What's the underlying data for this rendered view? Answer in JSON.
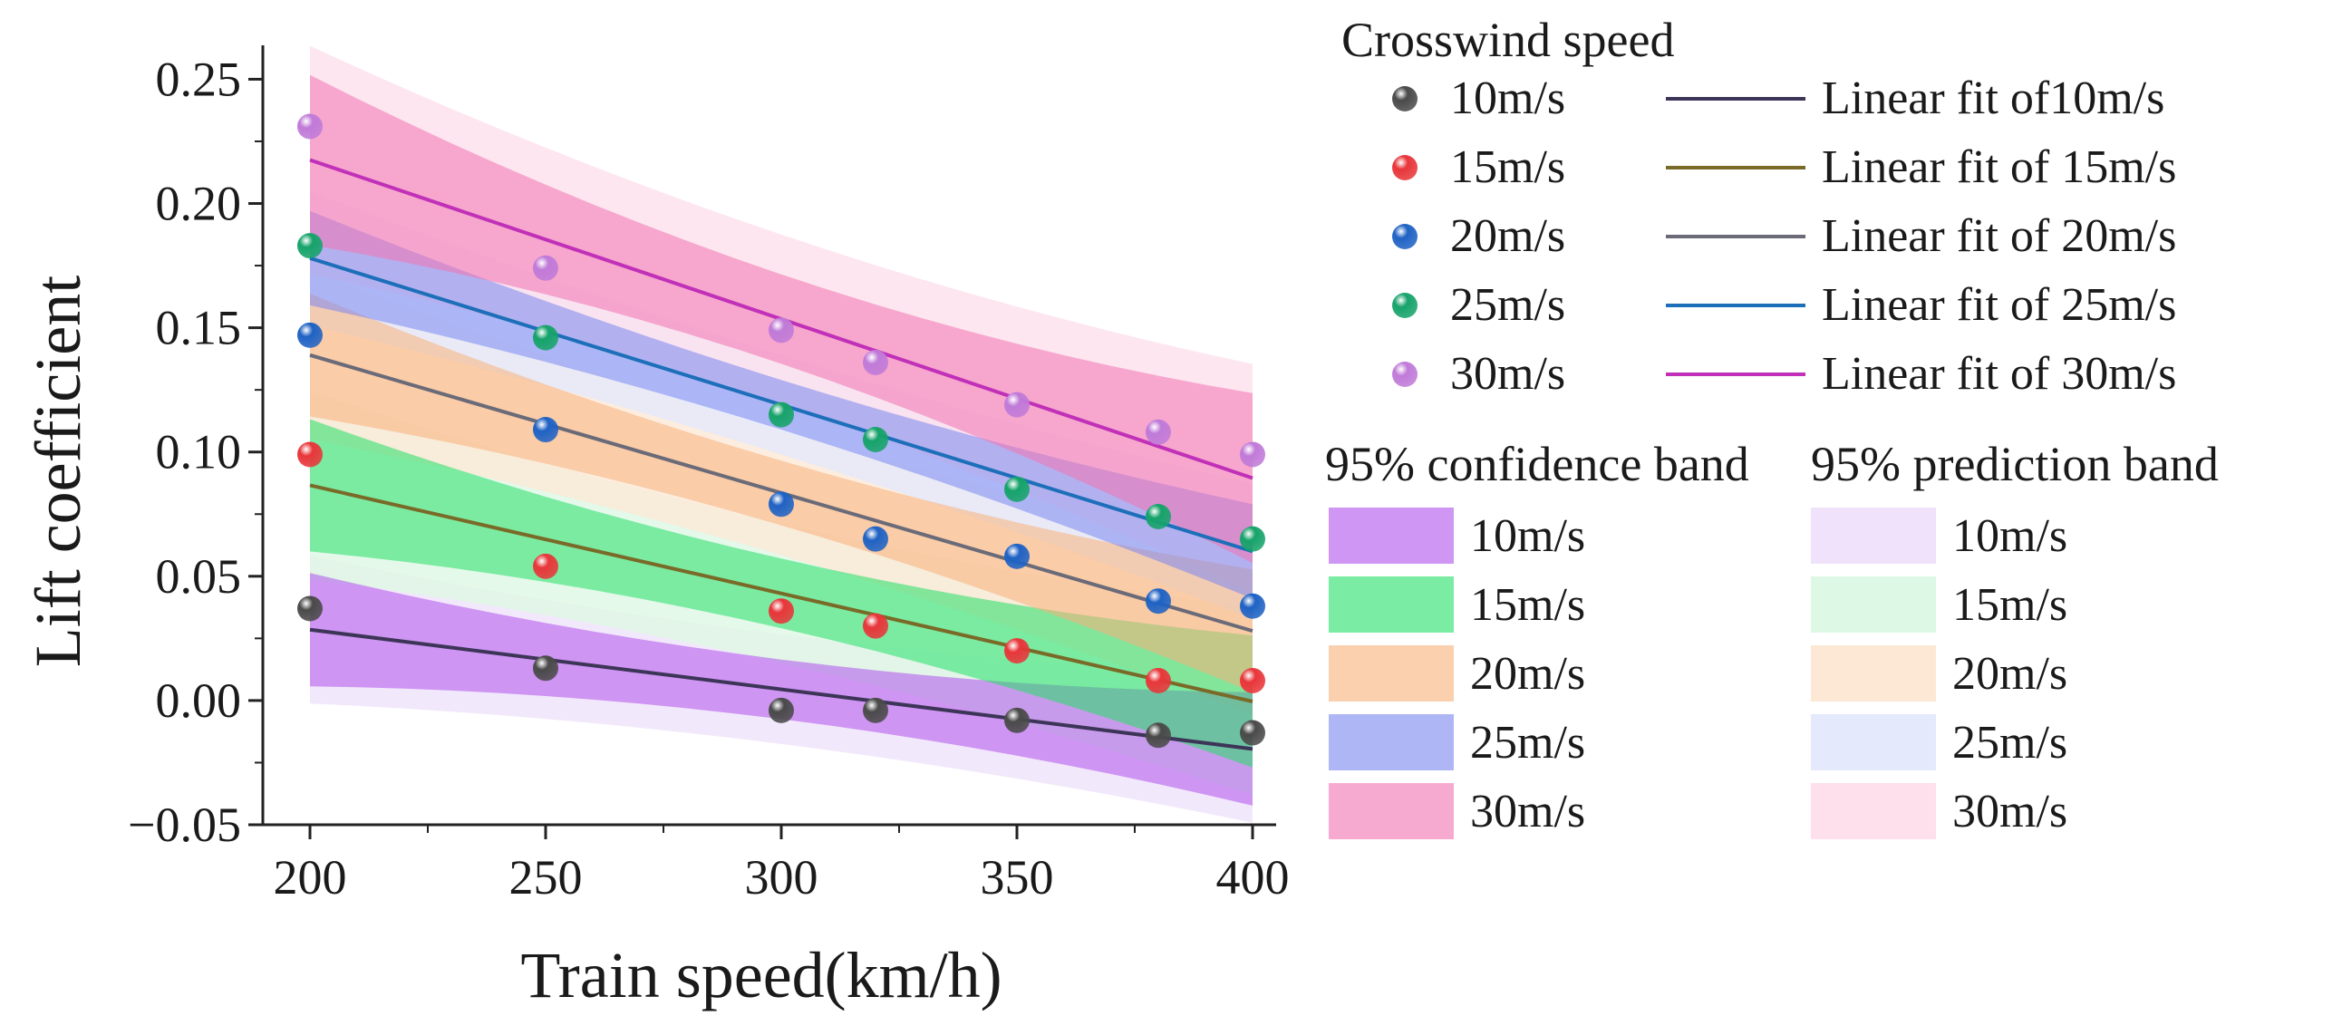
{
  "chart_data": {
    "type": "scatter",
    "title": "",
    "xlabel": "Train speed(km/h)",
    "ylabel": "Lift coefficient",
    "xlim": [
      190,
      405
    ],
    "ylim": [
      -0.05,
      0.26
    ],
    "xticks": [
      200,
      250,
      300,
      350,
      400
    ],
    "xtick_labels": [
      "200",
      "250",
      "300",
      "350",
      "400"
    ],
    "yticks": [
      -0.05,
      0.0,
      0.05,
      0.1,
      0.15,
      0.2,
      0.25
    ],
    "ytick_labels": [
      "−0.05",
      "0.00",
      "0.05",
      "0.10",
      "0.15",
      "0.20",
      "0.25"
    ],
    "x": [
      200,
      250,
      300,
      320,
      350,
      380,
      400
    ],
    "series": [
      {
        "name": "10m/s",
        "fit_label": "Linear fit of10m/s",
        "values": [
          0.037,
          0.013,
          -0.004,
          -0.004,
          -0.008,
          -0.014,
          -0.013
        ],
        "fit": {
          "intercept": 0.0765,
          "slope": -0.00024
        },
        "marker_color": "#4a4a4a",
        "fit_color": "#3d3558",
        "ci_color": "#b050ec",
        "pi_color": "#efe2fa",
        "ci_half_width": 0.012,
        "pi_half_width": 0.022
      },
      {
        "name": "15m/s",
        "fit_label": "Linear fit of 15m/s",
        "values": [
          0.099,
          0.054,
          0.036,
          0.03,
          0.02,
          0.008,
          0.008
        ],
        "fit": {
          "intercept": 0.1736,
          "slope": -0.000435
        },
        "marker_color": "#e8363a",
        "fit_color": "#7a6a28",
        "ci_color": "#22e066",
        "pi_color": "#ddf8e4",
        "ci_half_width": 0.014,
        "pi_half_width": 0.028
      },
      {
        "name": "20m/s",
        "fit_label": "Linear fit of 20m/s",
        "values": [
          0.147,
          0.109,
          0.079,
          0.065,
          0.058,
          0.04,
          0.038
        ],
        "fit": {
          "intercept": 0.25,
          "slope": -0.000555
        },
        "marker_color": "#1f62c4",
        "fit_color": "#6a6a78",
        "ci_color": "#f7b07a",
        "pi_color": "#fde8d6",
        "ci_half_width": 0.013,
        "pi_half_width": 0.025
      },
      {
        "name": "25m/s",
        "fit_label": "Linear fit of 25m/s",
        "values": [
          0.183,
          0.146,
          0.115,
          0.105,
          0.085,
          0.074,
          0.065
        ],
        "fit": {
          "intercept": 0.296,
          "slope": -0.00059
        },
        "marker_color": "#16a36a",
        "fit_color": "#1c6fb8",
        "ci_color": "#7a86f0",
        "pi_color": "#e4e9fb",
        "ci_half_width": 0.01,
        "pi_half_width": 0.02
      },
      {
        "name": "30m/s",
        "fit_label": "Linear fit of 30m/s",
        "values": [
          0.231,
          0.174,
          0.149,
          0.136,
          0.119,
          0.108,
          0.099
        ],
        "fit": {
          "intercept": 0.3455,
          "slope": -0.00064
        },
        "marker_color": "#c07ad8",
        "fit_color": "#c030b8",
        "ci_color": "#f272b0",
        "pi_color": "#fde0ec",
        "ci_half_width": 0.018,
        "pi_half_width": 0.034
      }
    ],
    "legend": {
      "placement": "right",
      "title": "Crosswind speed",
      "confidence_title": "95% confidence band",
      "prediction_title": "95% prediction band"
    }
  }
}
